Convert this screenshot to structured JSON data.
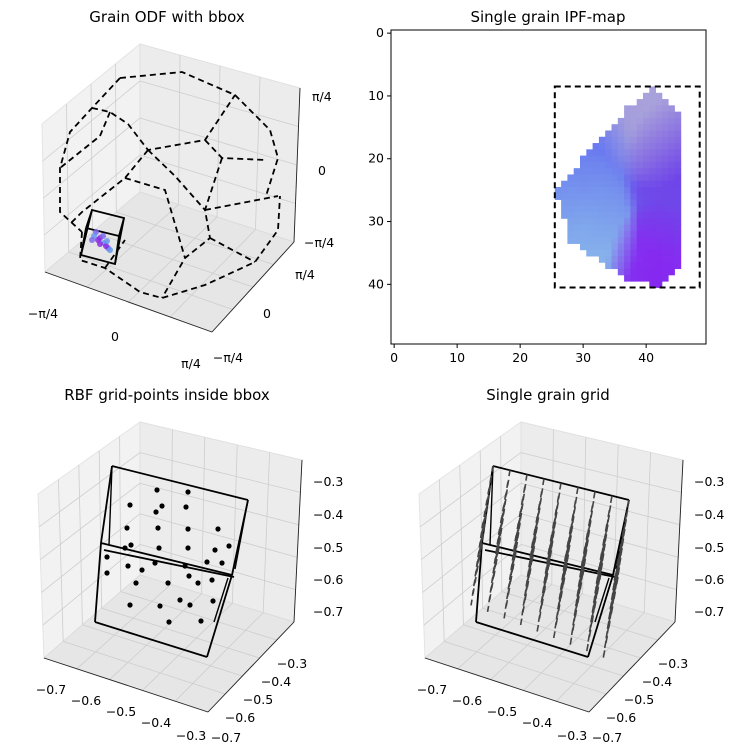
{
  "chart_data": [
    {
      "type": "scatter",
      "projection": "3d",
      "title": "Grain ODF with bbox",
      "x_ticks": [
        "−π/4",
        "0",
        "π/4"
      ],
      "y_ticks": [
        "−π/4",
        "0",
        "π/4"
      ],
      "z_ticks": [
        "−π/4",
        "0",
        "π/4"
      ],
      "grid": true,
      "line_style": "dashed",
      "line_color": "#000000",
      "bbox_line_color": "#000000",
      "point_colors": [
        "#7b68ee",
        "#8a2be2",
        "#6495ed"
      ]
    },
    {
      "type": "heatmap",
      "title": "Single grain IPF-map",
      "x_ticks": [
        "0",
        "10",
        "20",
        "30",
        "40"
      ],
      "y_ticks": [
        "0",
        "10",
        "20",
        "30",
        "40"
      ],
      "xlim": [
        -0.5,
        49.5
      ],
      "ylim": [
        49.5,
        -0.5
      ],
      "bbox": {
        "x0": 25.5,
        "x1": 48.5,
        "y0": 8.5,
        "y1": 40.5
      },
      "grain_polygon": [
        [
          41,
          8.5
        ],
        [
          46,
          13
        ],
        [
          46,
          37
        ],
        [
          42,
          40.5
        ],
        [
          37,
          39
        ],
        [
          28,
          33
        ],
        [
          25.5,
          25
        ],
        [
          30,
          20
        ],
        [
          37,
          12
        ]
      ],
      "colors": {
        "top": "#b0a8d8",
        "left": "#6a7cf0",
        "lower_left": "#8cc0ea",
        "right": "#7040e8",
        "bottom": "#8a20f0"
      }
    },
    {
      "type": "scatter",
      "projection": "3d",
      "title": "RBF grid-points inside bbox",
      "x_ticks": [
        "−0.7",
        "−0.6",
        "−0.5",
        "−0.4",
        "−0.3"
      ],
      "y_ticks": [
        "−0.3",
        "−0.4",
        "−0.5",
        "−0.6",
        "−0.7"
      ],
      "z_ticks": [
        "−0.3",
        "−0.4",
        "−0.5",
        "−0.6",
        "−0.7"
      ],
      "grid": true,
      "marker_color": "#000000",
      "grid_n": 3
    },
    {
      "type": "scatter",
      "projection": "3d",
      "title": "Single grain grid",
      "x_ticks": [
        "−0.7",
        "−0.6",
        "−0.5",
        "−0.4",
        "−0.3"
      ],
      "y_ticks": [
        "−0.3",
        "−0.4",
        "−0.5",
        "−0.6",
        "−0.7"
      ],
      "z_ticks": [
        "−0.3",
        "−0.4",
        "−0.5",
        "−0.6",
        "−0.7"
      ],
      "grid": true,
      "marker_color": "#444444",
      "grid_n": 8
    }
  ]
}
